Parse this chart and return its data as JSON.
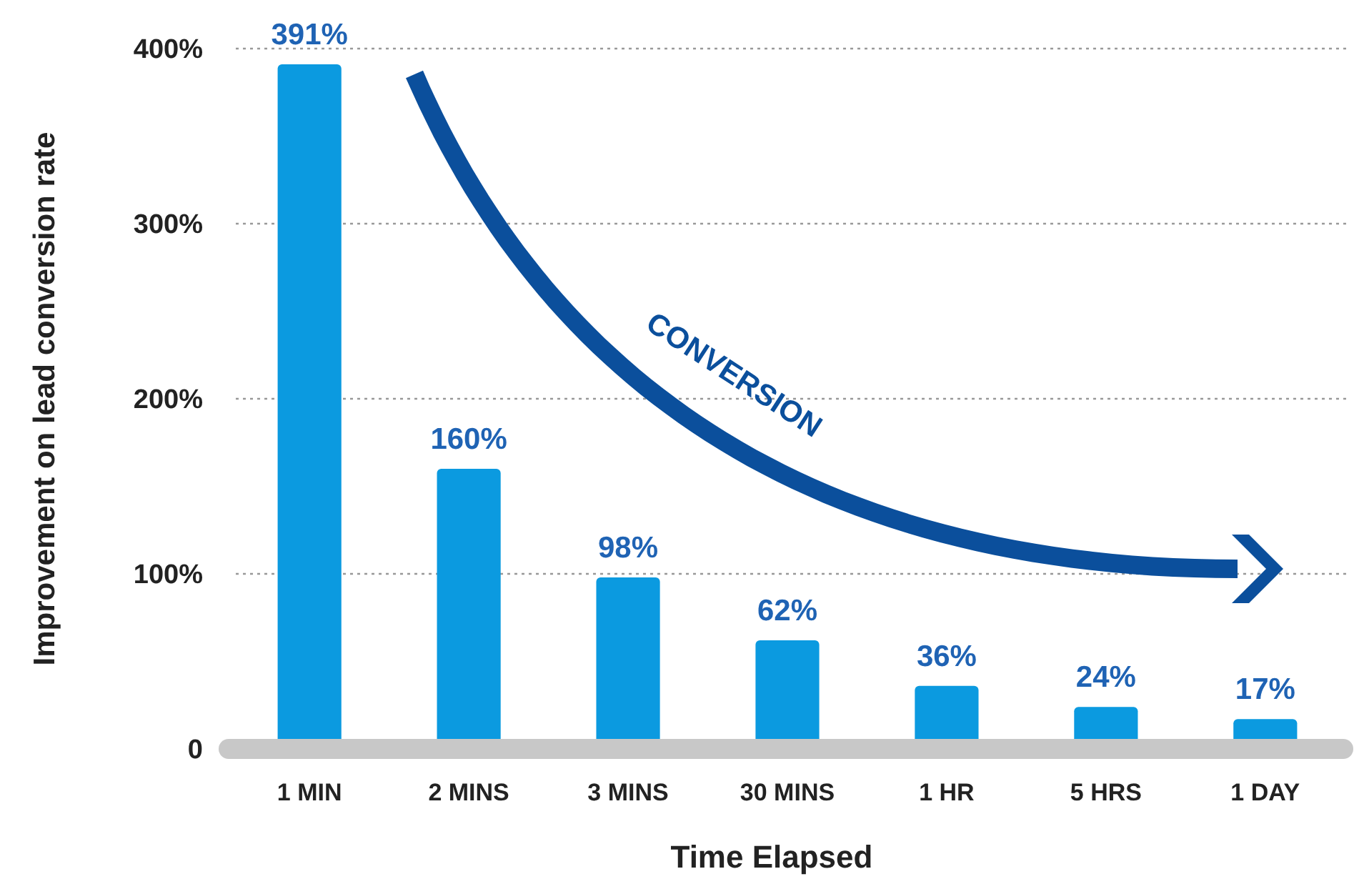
{
  "chart_data": {
    "type": "bar",
    "xlabel": "Time Elapsed",
    "ylabel": "Improvement on lead conversion rate",
    "categories": [
      "1 MIN",
      "2 MINS",
      "3 MINS",
      "30 MINS",
      "1 HR",
      "5 HRS",
      "1 DAY"
    ],
    "values": [
      391,
      160,
      98,
      62,
      36,
      24,
      17
    ],
    "value_labels": [
      "391%",
      "160%",
      "98%",
      "62%",
      "36%",
      "24%",
      "17%"
    ],
    "color": "#0b9ae0",
    "ylim": [
      0,
      400
    ],
    "yticks": [
      {
        "value": 0,
        "label": "0"
      },
      {
        "value": 100,
        "label": "100%"
      },
      {
        "value": 200,
        "label": "200%"
      },
      {
        "value": 300,
        "label": "300%"
      },
      {
        "value": 400,
        "label": "400%"
      }
    ],
    "grid": "y",
    "annotations": [
      "CONVERSION"
    ]
  }
}
